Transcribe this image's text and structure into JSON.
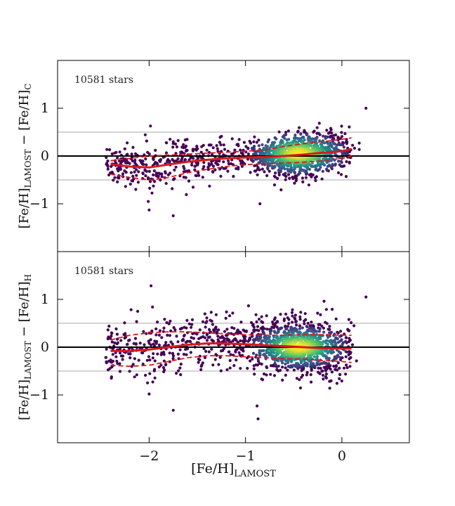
{
  "chart_data": [
    {
      "type": "scatter",
      "annotation": "10581 stars",
      "ylabel": {
        "main": "[Fe/H]",
        "sub1": "LAMOST",
        "mid": " − [Fe/H]",
        "sub2": "C"
      },
      "xlabel": "",
      "xlim": [
        -2.95,
        0.7
      ],
      "ylim": [
        -2.0,
        2.0
      ],
      "xticks": [
        -2,
        -1,
        0
      ],
      "yticks": [
        -1,
        0,
        1
      ],
      "ytick_labels": [
        "−1",
        "0",
        "1"
      ],
      "reference_lines": {
        "zero": 0,
        "grey": [
          0.5,
          -0.5
        ]
      },
      "density_peak": {
        "x": -0.45,
        "y": 0.05
      },
      "median_curve": {
        "x": [
          -2.4,
          -2.2,
          -2.0,
          -1.8,
          -1.6,
          -1.4,
          -1.2,
          -1.0,
          -0.8,
          -0.6,
          -0.4,
          -0.2,
          0.0,
          0.1
        ],
        "y": [
          -0.17,
          -0.22,
          -0.24,
          -0.18,
          -0.12,
          -0.08,
          -0.05,
          -0.03,
          -0.02,
          0.0,
          0.03,
          0.07,
          0.1,
          0.15
        ]
      },
      "upper_curve": {
        "x": [
          -2.4,
          -2.2,
          -2.0,
          -1.8,
          -1.6,
          -1.4,
          -1.2,
          -1.0,
          -0.8,
          -0.6,
          -0.4,
          -0.2,
          0.0,
          0.1
        ],
        "y": [
          -0.1,
          -0.05,
          0.0,
          0.02,
          0.04,
          0.06,
          0.08,
          0.1,
          0.13,
          0.2,
          0.26,
          0.3,
          0.35,
          0.38
        ]
      },
      "lower_curve": {
        "x": [
          -2.4,
          -2.2,
          -2.0,
          -1.8,
          -1.6,
          -1.4,
          -1.2,
          -1.0,
          -0.8,
          -0.6,
          -0.4,
          -0.2,
          0.0,
          0.1
        ],
        "y": [
          -0.38,
          -0.45,
          -0.5,
          -0.45,
          -0.35,
          -0.28,
          -0.22,
          -0.18,
          -0.16,
          -0.15,
          -0.13,
          -0.1,
          -0.05,
          0.0
        ]
      },
      "outliers": [
        [
          -2.0,
          -1.13
        ],
        [
          -1.75,
          -1.25
        ],
        [
          0.25,
          1.0
        ],
        [
          -0.85,
          -1.0
        ]
      ]
    },
    {
      "type": "scatter",
      "annotation": "10581 stars",
      "ylabel": {
        "main": "[Fe/H]",
        "sub1": "LAMOST",
        "mid": " − [Fe/H]",
        "sub2": "H"
      },
      "xlabel": {
        "main": "[Fe/H]",
        "sub": "LAMOST"
      },
      "xlim": [
        -2.95,
        0.7
      ],
      "ylim": [
        -2.0,
        2.0
      ],
      "xticks": [
        -2,
        -1,
        0
      ],
      "xtick_labels": [
        "−2",
        "−1",
        "0"
      ],
      "yticks": [
        -1,
        0,
        1
      ],
      "ytick_labels": [
        "−1",
        "0",
        "1"
      ],
      "reference_lines": {
        "zero": 0,
        "grey": [
          0.5,
          -0.5
        ]
      },
      "density_peak": {
        "x": -0.45,
        "y": 0.0
      },
      "median_curve": {
        "x": [
          -2.4,
          -2.2,
          -2.0,
          -1.8,
          -1.6,
          -1.4,
          -1.2,
          -1.0,
          -0.8,
          -0.6,
          -0.4,
          -0.2,
          0.0,
          0.1
        ],
        "y": [
          -0.08,
          -0.08,
          -0.05,
          0.0,
          0.05,
          0.08,
          0.08,
          0.06,
          0.04,
          0.02,
          0.0,
          -0.02,
          -0.03,
          -0.03
        ]
      },
      "upper_curve": {
        "x": [
          -2.4,
          -2.2,
          -2.0,
          -1.8,
          -1.6,
          -1.4,
          -1.2,
          -1.0,
          -0.8,
          -0.6,
          -0.4,
          -0.2,
          0.0,
          0.1
        ],
        "y": [
          0.15,
          0.25,
          0.3,
          0.32,
          0.32,
          0.3,
          0.28,
          0.26,
          0.25,
          0.25,
          0.26,
          0.26,
          0.25,
          0.25
        ]
      },
      "lower_curve": {
        "x": [
          -2.4,
          -2.2,
          -2.0,
          -1.8,
          -1.6,
          -1.4,
          -1.2,
          -1.0,
          -0.8,
          -0.6,
          -0.4,
          -0.2,
          0.0,
          0.1
        ],
        "y": [
          -0.38,
          -0.4,
          -0.38,
          -0.3,
          -0.22,
          -0.18,
          -0.18,
          -0.2,
          -0.22,
          -0.24,
          -0.25,
          -0.28,
          -0.3,
          -0.32
        ]
      },
      "outliers": [
        [
          -2.0,
          -0.98
        ],
        [
          -1.75,
          -1.32
        ],
        [
          -0.87,
          -1.5
        ],
        [
          -0.88,
          -1.23
        ],
        [
          0.25,
          1.05
        ]
      ]
    }
  ]
}
